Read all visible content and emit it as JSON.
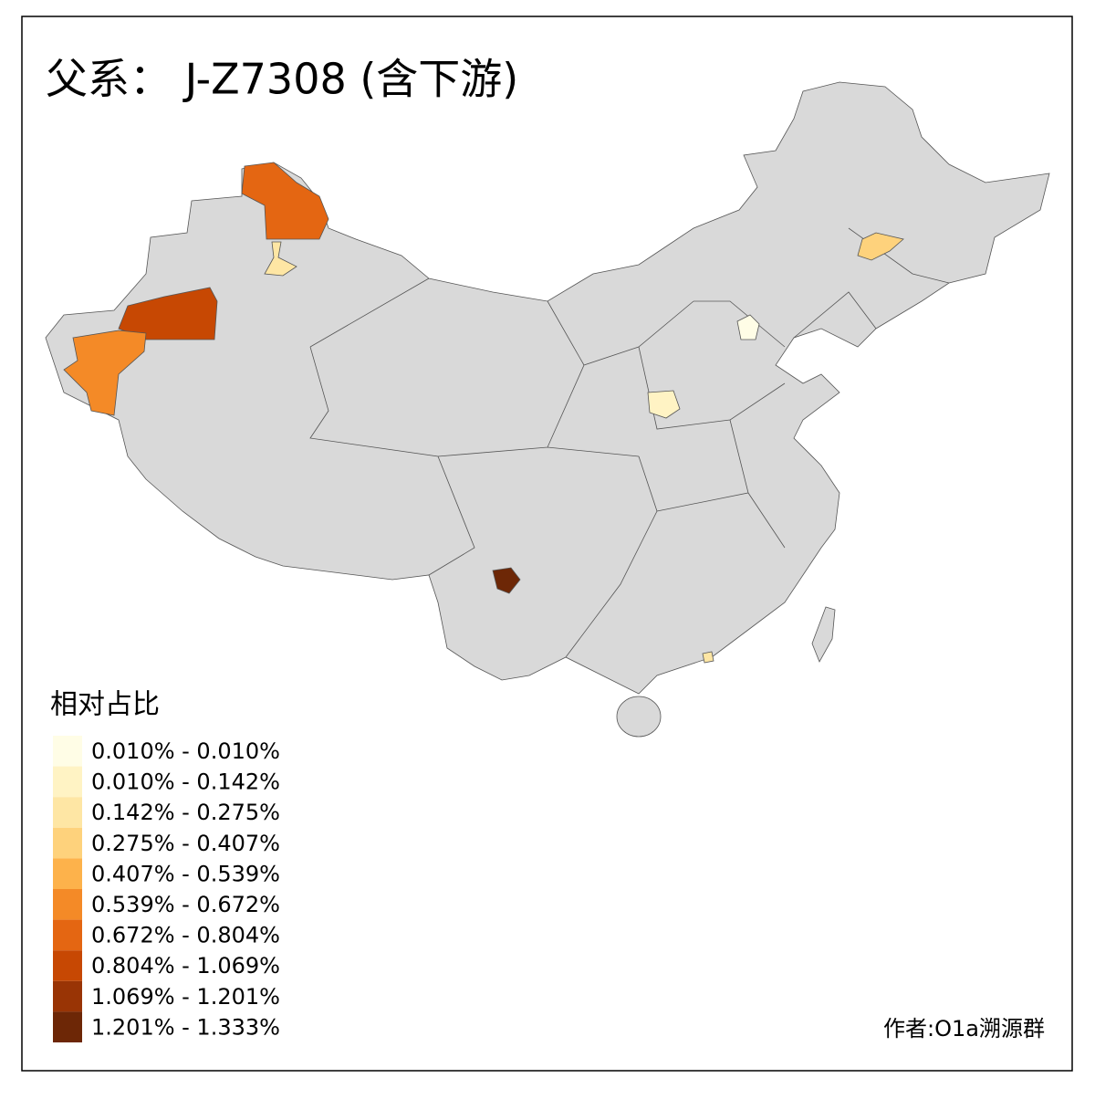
{
  "title": "父系： J-Z7308 (含下游)",
  "legend": {
    "title": "相对占比",
    "items": [
      {
        "label": "0.010% - 0.010%",
        "color": "#fffde6"
      },
      {
        "label": "0.010% - 0.142%",
        "color": "#fff3c4"
      },
      {
        "label": "0.142% - 0.275%",
        "color": "#fee6a4"
      },
      {
        "label": "0.275% - 0.407%",
        "color": "#fed27c"
      },
      {
        "label": "0.407% - 0.539%",
        "color": "#fdb24b"
      },
      {
        "label": "0.539% - 0.672%",
        "color": "#f48a27"
      },
      {
        "label": "0.672% - 0.804%",
        "color": "#e46612"
      },
      {
        "label": "0.804% - 1.069%",
        "color": "#c74803"
      },
      {
        "label": "1.069% - 1.201%",
        "color": "#993405"
      },
      {
        "label": "1.201% - 1.333%",
        "color": "#6d2706"
      }
    ]
  },
  "credit": "作者:O1a溯源群"
}
